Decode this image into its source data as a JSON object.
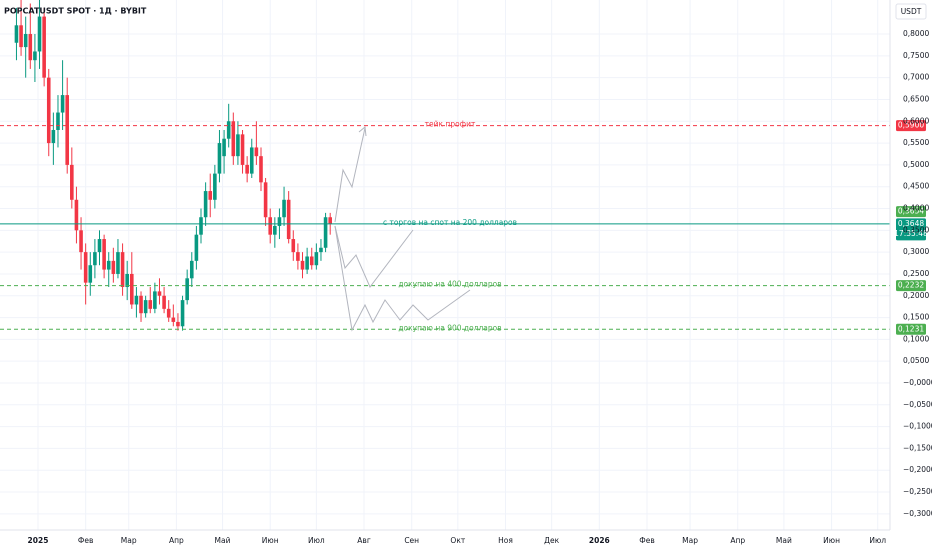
{
  "chart_data": {
    "type": "candlestick",
    "title": "POPCATUSDT SPOT · 1Д · BYBIT",
    "currency": "USDT",
    "up_color": "#089981",
    "down_color": "#f23645",
    "grid": true,
    "xlim": [
      -24.7,
      554
    ],
    "ylim": [
      -0.337,
      0.878
    ],
    "xticks": [
      {
        "value": 0,
        "label": "2025"
      },
      {
        "value": 31,
        "label": "Фев"
      },
      {
        "value": 59,
        "label": "Мар"
      },
      {
        "value": 90,
        "label": "Апр"
      },
      {
        "value": 120,
        "label": "Май"
      },
      {
        "value": 151,
        "label": "Июн"
      },
      {
        "value": 181,
        "label": "Июл"
      },
      {
        "value": 212,
        "label": "Авг"
      },
      {
        "value": 243,
        "label": "Сен"
      },
      {
        "value": 273,
        "label": "Окт"
      },
      {
        "value": 304,
        "label": "Ноя"
      },
      {
        "value": 334,
        "label": "Дек"
      },
      {
        "value": 365,
        "label": "2026"
      },
      {
        "value": 396,
        "label": "Фев"
      },
      {
        "value": 424,
        "label": "Мар"
      },
      {
        "value": 455,
        "label": "Апр"
      },
      {
        "value": 485,
        "label": "Май"
      },
      {
        "value": 516,
        "label": "Июн"
      },
      {
        "value": 546,
        "label": "Июл"
      }
    ],
    "yticks": [
      {
        "value": 0.8,
        "label": "0,8000"
      },
      {
        "value": 0.75,
        "label": "0,7500"
      },
      {
        "value": 0.7,
        "label": "0,7000"
      },
      {
        "value": 0.65,
        "label": "0,6500"
      },
      {
        "value": 0.6,
        "label": "0,6000"
      },
      {
        "value": 0.55,
        "label": "0,5500"
      },
      {
        "value": 0.5,
        "label": "0,5000"
      },
      {
        "value": 0.45,
        "label": "0,4500"
      },
      {
        "value": 0.4,
        "label": "0,4000"
      },
      {
        "value": 0.35,
        "label": "0,3500"
      },
      {
        "value": 0.3,
        "label": "0,3000"
      },
      {
        "value": 0.25,
        "label": "0,2500"
      },
      {
        "value": 0.2,
        "label": "0,2000"
      },
      {
        "value": 0.15,
        "label": "0,1500"
      },
      {
        "value": 0.1,
        "label": "0,1000"
      },
      {
        "value": 0.05,
        "label": "0,0500"
      },
      {
        "value": 0,
        "label": "−0,0000"
      },
      {
        "value": -0.05,
        "label": "−0,0500"
      },
      {
        "value": -0.1,
        "label": "−0,1000"
      },
      {
        "value": -0.15,
        "label": "−0,1500"
      },
      {
        "value": -0.2,
        "label": "−0,2000"
      },
      {
        "value": -0.25,
        "label": "−0,2500"
      },
      {
        "value": -0.3,
        "label": "−0,3000"
      }
    ],
    "x": [
      -14,
      -11,
      -8,
      -5,
      -2,
      1,
      4,
      7,
      10,
      13,
      16,
      19,
      22,
      25,
      28,
      31,
      34,
      37,
      40,
      43,
      46,
      49,
      52,
      55,
      58,
      61,
      64,
      67,
      70,
      73,
      76,
      79,
      82,
      85,
      88,
      91,
      94,
      97,
      100,
      103,
      106,
      109,
      112,
      115,
      118,
      121,
      124,
      127,
      130,
      133,
      136,
      139,
      142,
      145,
      148,
      151,
      154,
      157,
      160,
      163,
      166,
      169,
      172,
      175,
      178,
      181,
      184,
      187,
      190
    ],
    "open": [
      0.78,
      0.82,
      0.77,
      0.8,
      0.74,
      0.76,
      0.84,
      0.7,
      0.55,
      0.58,
      0.62,
      0.66,
      0.5,
      0.42,
      0.35,
      0.3,
      0.23,
      0.27,
      0.3,
      0.33,
      0.26,
      0.28,
      0.25,
      0.3,
      0.22,
      0.25,
      0.18,
      0.2,
      0.16,
      0.19,
      0.17,
      0.21,
      0.2,
      0.17,
      0.15,
      0.14,
      0.13,
      0.19,
      0.24,
      0.28,
      0.34,
      0.38,
      0.44,
      0.42,
      0.48,
      0.52,
      0.56,
      0.6,
      0.52,
      0.57,
      0.5,
      0.48,
      0.54,
      0.52,
      0.46,
      0.38,
      0.34,
      0.36,
      0.38,
      0.42,
      0.33,
      0.3,
      0.28,
      0.26,
      0.29,
      0.27,
      0.3,
      0.31,
      0.38
    ],
    "high": [
      0.86,
      0.88,
      0.84,
      0.87,
      0.8,
      0.88,
      0.86,
      0.72,
      0.62,
      0.66,
      0.74,
      0.7,
      0.54,
      0.45,
      0.38,
      0.32,
      0.3,
      0.33,
      0.35,
      0.34,
      0.3,
      0.31,
      0.33,
      0.32,
      0.28,
      0.3,
      0.22,
      0.21,
      0.2,
      0.22,
      0.23,
      0.24,
      0.22,
      0.19,
      0.18,
      0.16,
      0.2,
      0.26,
      0.3,
      0.36,
      0.4,
      0.46,
      0.48,
      0.5,
      0.58,
      0.58,
      0.64,
      0.62,
      0.6,
      0.58,
      0.52,
      0.56,
      0.6,
      0.54,
      0.47,
      0.4,
      0.38,
      0.4,
      0.45,
      0.44,
      0.35,
      0.32,
      0.3,
      0.31,
      0.31,
      0.32,
      0.33,
      0.39,
      0.39
    ],
    "low": [
      0.74,
      0.75,
      0.7,
      0.72,
      0.69,
      0.72,
      0.68,
      0.52,
      0.5,
      0.54,
      0.58,
      0.48,
      0.4,
      0.32,
      0.26,
      0.18,
      0.2,
      0.24,
      0.27,
      0.24,
      0.22,
      0.23,
      0.24,
      0.2,
      0.19,
      0.17,
      0.15,
      0.14,
      0.15,
      0.16,
      0.16,
      0.18,
      0.16,
      0.14,
      0.13,
      0.12,
      0.12,
      0.18,
      0.22,
      0.26,
      0.32,
      0.36,
      0.38,
      0.4,
      0.46,
      0.48,
      0.54,
      0.5,
      0.5,
      0.48,
      0.46,
      0.47,
      0.5,
      0.44,
      0.36,
      0.32,
      0.31,
      0.33,
      0.36,
      0.32,
      0.28,
      0.26,
      0.24,
      0.25,
      0.26,
      0.26,
      0.28,
      0.3,
      0.34
    ],
    "close": [
      0.82,
      0.77,
      0.8,
      0.74,
      0.76,
      0.84,
      0.7,
      0.55,
      0.58,
      0.62,
      0.66,
      0.5,
      0.42,
      0.35,
      0.3,
      0.23,
      0.27,
      0.3,
      0.33,
      0.26,
      0.28,
      0.25,
      0.3,
      0.22,
      0.25,
      0.18,
      0.2,
      0.16,
      0.19,
      0.17,
      0.21,
      0.2,
      0.17,
      0.15,
      0.14,
      0.13,
      0.19,
      0.24,
      0.28,
      0.34,
      0.38,
      0.44,
      0.42,
      0.48,
      0.55,
      0.56,
      0.6,
      0.52,
      0.57,
      0.5,
      0.48,
      0.54,
      0.52,
      0.46,
      0.38,
      0.34,
      0.36,
      0.38,
      0.42,
      0.33,
      0.3,
      0.28,
      0.26,
      0.29,
      0.27,
      0.3,
      0.31,
      0.38,
      0.3648
    ],
    "levels": [
      {
        "value": 0.59,
        "tag": "0,5900",
        "text": "тейк профит",
        "color": "#f23645",
        "style": "dashed"
      },
      {
        "value": 0.3648,
        "tag": "0,3648",
        "countdown": "17:35:48",
        "text": "с торгов на спот на 200 долларов",
        "color": "#089981",
        "style": "solid"
      },
      {
        "value": 0.2232,
        "tag": "0,2232",
        "text": "докупаю на 400 долларов",
        "color": "#4caf50",
        "style": "dashed"
      },
      {
        "value": 0.1231,
        "tag": "0,1231",
        "text": "докупаю на 900 долларов",
        "color": "#4caf50",
        "style": "dashed"
      }
    ],
    "price_tags": [
      {
        "value": 0.3654,
        "label": "0,3654",
        "color": "#4caf50"
      }
    ]
  }
}
